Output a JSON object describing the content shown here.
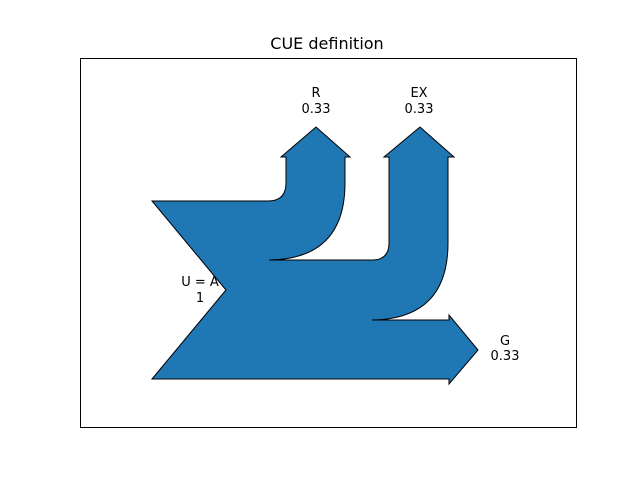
{
  "chart_data": {
    "type": "sankey",
    "title": "CUE definition",
    "inflow": {
      "label": "U = A",
      "value": "1"
    },
    "outflows": [
      {
        "label": "R",
        "value": "0.33",
        "fraction": 0.33
      },
      {
        "label": "EX",
        "value": "0.33",
        "fraction": 0.33
      },
      {
        "label": "G",
        "value": "0.33",
        "fraction": 0.33
      }
    ],
    "fill_color": "#1f77b4",
    "edge_color": "#000000",
    "frame": true,
    "grid": false
  }
}
